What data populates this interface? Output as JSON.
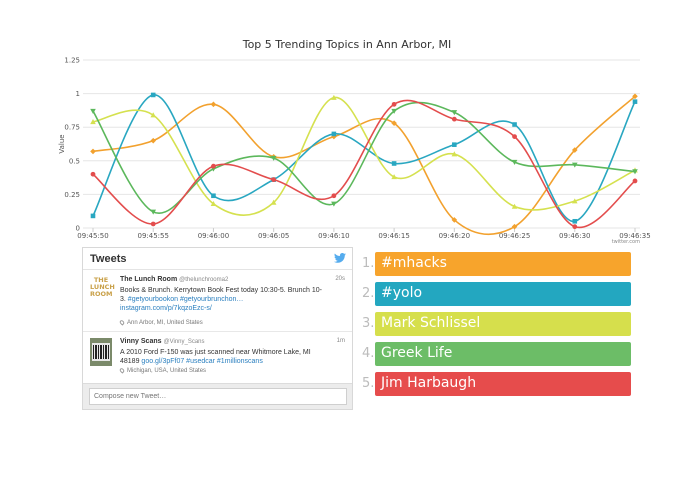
{
  "chart_data": {
    "type": "line",
    "title": "Top 5 Trending Topics in Ann Arbor, MI",
    "ylabel": "Value",
    "xlabel": "",
    "ylim": [
      0,
      1.25
    ],
    "yticks": [
      "0",
      "0.25",
      "0.5",
      "0.75",
      "1",
      "1.25"
    ],
    "categories": [
      "09:45:50",
      "09:45:55",
      "09:46:00",
      "09:46:05",
      "09:46:10",
      "09:46:15",
      "09:46:20",
      "09:46:25",
      "09:46:30",
      "09:46:35"
    ],
    "grid": true,
    "credit": "twitter.com",
    "series": [
      {
        "color": "#f2a12e",
        "marker": "diamond",
        "values": [
          0.57,
          0.65,
          0.92,
          0.53,
          0.68,
          0.78,
          0.06,
          0.01,
          0.58,
          0.98
        ]
      },
      {
        "color": "#29a7c1",
        "marker": "square",
        "values": [
          0.09,
          0.99,
          0.24,
          0.36,
          0.7,
          0.48,
          0.62,
          0.77,
          0.05,
          0.94
        ]
      },
      {
        "color": "#d5e14f",
        "marker": "triangle",
        "values": [
          0.79,
          0.84,
          0.18,
          0.19,
          0.97,
          0.38,
          0.55,
          0.16,
          0.2,
          0.43
        ]
      },
      {
        "color": "#5cb85c",
        "marker": "triangle-down",
        "values": [
          0.87,
          0.12,
          0.44,
          0.52,
          0.18,
          0.87,
          0.86,
          0.49,
          0.47,
          0.42
        ]
      },
      {
        "color": "#e34d4d",
        "marker": "circle",
        "values": [
          0.4,
          0.03,
          0.46,
          0.36,
          0.24,
          0.92,
          0.81,
          0.68,
          0.01,
          0.35
        ]
      }
    ]
  },
  "tweets_widget": {
    "title": "Tweets",
    "bird_icon": "twitter-bird-icon",
    "tweets": [
      {
        "name": "The Lunch Room",
        "handle": "@thelunchrooma2",
        "time": "20s",
        "text_line1": "Books & Brunch. Kerrytown Book Fest today 10:30-5. Brunch 10-",
        "text_line2_plain": "3. ",
        "text_line2_link": "#getyourbookon #getyourbrunchon…",
        "text_line3_link": "instagram.com/p/7kqzoEzc-s/",
        "location": "Ann Arbor, MI, United States",
        "avatar_text": [
          "THE",
          "LUNCH",
          "ROOM"
        ]
      },
      {
        "name": "Vinny Scans",
        "handle": "@Vinny_Scans",
        "time": "1m",
        "text_line1": "A 2010 Ford F-150 was just scanned near Whitmore Lake, MI",
        "text_line2_plain": "48189 ",
        "text_line2_link": "goo.gl/3pFf07 #usedcar #1millionscans",
        "location": "Michigan, USA, United States"
      }
    ],
    "compose_placeholder": "Compose new Tweet…"
  },
  "ranking": [
    {
      "number": "1.",
      "label": "#mhacks",
      "color": "#f7a42c"
    },
    {
      "number": "2.",
      "label": "#yolo",
      "color": "#23a7c0"
    },
    {
      "number": "3.",
      "label": "Mark Schlissel",
      "color": "#d6df4c"
    },
    {
      "number": "4.",
      "label": "Greek Life",
      "color": "#6cbd67"
    },
    {
      "number": "5.",
      "label": "Jim Harbaugh",
      "color": "#e64c4c"
    }
  ]
}
